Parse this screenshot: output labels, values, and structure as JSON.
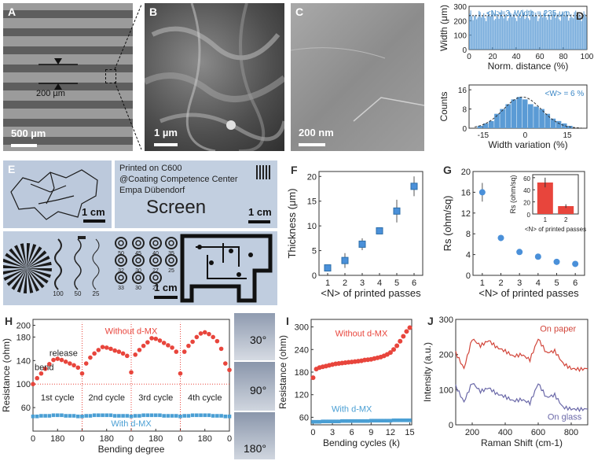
{
  "panels": {
    "A": {
      "letter": "A",
      "annotation": "200 µm",
      "scale": "500 µm"
    },
    "B": {
      "letter": "B",
      "scale": "1 µm"
    },
    "C": {
      "letter": "C",
      "scale": "200 nm"
    },
    "D": {
      "letter": "D"
    },
    "E": {
      "letter": "E",
      "map_scale": "1 cm",
      "screen_lines": [
        "Printed on C600",
        "@Coating Competence Center",
        "Empa Dübendorf"
      ],
      "screen_word": "Screen",
      "screen_scale": "1 cm",
      "pattern_scale": "1 cm",
      "ring_labels": [
        "50",
        "45",
        "40",
        "35",
        "32",
        "30",
        "27",
        "25",
        "33",
        "30",
        "27"
      ],
      "bar_labels": [
        "100",
        "50",
        "25"
      ]
    },
    "F": {
      "letter": "F"
    },
    "G": {
      "letter": "G"
    },
    "H": {
      "letter": "H",
      "angles": [
        "30°",
        "90°",
        "180°"
      ]
    },
    "I": {
      "letter": "I"
    },
    "J": {
      "letter": "J"
    }
  },
  "chart_data": [
    {
      "id": "D-top",
      "type": "bar",
      "ylabel": "Width (μm)",
      "xlabel": "Norm. distance (%)",
      "annotation": "<N>=3, Width = 235 μm",
      "xlim": [
        0,
        100
      ],
      "ylim": [
        0,
        300
      ],
      "xticks": [
        0,
        20,
        40,
        60,
        80,
        100
      ],
      "yticks": [
        0,
        100,
        200,
        300
      ],
      "mean": 235,
      "color": "#5b9bd5"
    },
    {
      "id": "D-bottom",
      "type": "bar",
      "ylabel": "Counts",
      "xlabel": "Width variation (%)",
      "annotation": "<W> = 6 %",
      "xlim": [
        -20,
        22
      ],
      "ylim": [
        0,
        18
      ],
      "xticks": [
        -15,
        0,
        15
      ],
      "yticks": [
        0,
        8,
        16
      ],
      "x": [
        -16,
        -14,
        -12,
        -10,
        -8,
        -6,
        -4,
        -2,
        0,
        2,
        4,
        6,
        8,
        10,
        12,
        14,
        16
      ],
      "values": [
        1,
        2,
        3,
        6,
        8,
        10,
        12,
        13,
        12,
        10,
        9,
        8,
        6,
        4,
        3,
        2,
        1
      ],
      "color": "#5b9bd5"
    },
    {
      "id": "F",
      "type": "scatter",
      "xlabel": "<N> of printed passes",
      "ylabel": "Thickness (μm)",
      "xlim": [
        0.5,
        6.5
      ],
      "ylim": [
        0,
        21
      ],
      "xticks": [
        1,
        2,
        3,
        4,
        5,
        6
      ],
      "yticks": [
        0,
        5,
        10,
        15,
        20
      ],
      "x": [
        1,
        2,
        3,
        4,
        5,
        6
      ],
      "values": [
        1.5,
        3,
        6.3,
        9,
        13,
        18
      ],
      "err": [
        0.3,
        1.5,
        1.2,
        0.6,
        2.3,
        2.0
      ],
      "color": "#4a90d9"
    },
    {
      "id": "G",
      "type": "scatter",
      "xlabel": "<N> of printed passes",
      "ylabel": "Rs (ohm/sq)",
      "xlim": [
        0.5,
        6.5
      ],
      "ylim": [
        0,
        20
      ],
      "xticks": [
        1,
        2,
        3,
        4,
        5,
        6
      ],
      "yticks": [
        0,
        4,
        8,
        12,
        16,
        20
      ],
      "x": [
        1,
        2,
        3,
        4,
        5,
        6
      ],
      "values": [
        16,
        7.2,
        4.5,
        3.6,
        2.6,
        2.2
      ],
      "err": [
        1.8,
        0.6,
        0.3,
        0.2,
        0.2,
        0.2
      ],
      "color": "#4a90d9",
      "inset": {
        "type": "bar",
        "categories": [
          "1",
          "2"
        ],
        "values": [
          52,
          13
        ],
        "err": [
          8,
          3
        ],
        "ylabel": "Rs (ohm/sq)",
        "xlabel": "<N> of printed passes",
        "ylim": [
          0,
          65
        ],
        "yticks": [
          0,
          20,
          40,
          60
        ],
        "color": "#e8453c"
      }
    },
    {
      "id": "H",
      "type": "line",
      "xlabel": "Bending degree",
      "ylabel": "Resistance (ohm)",
      "ylim": [
        20,
        210
      ],
      "yticks": [
        40,
        60,
        80,
        100,
        120,
        140,
        160,
        180,
        200
      ],
      "tick_labels": [
        "0",
        "180",
        "0",
        "180",
        "0",
        "180",
        "0",
        "180",
        "0"
      ],
      "series": [
        {
          "name": "Without d-MX",
          "color": "#e8453c",
          "values": [
            100,
            110,
            118,
            126,
            134,
            141,
            143,
            141,
            138,
            135,
            132,
            128,
            118,
            135,
            145,
            152,
            158,
            163,
            162,
            160,
            157,
            155,
            152,
            148,
            120,
            150,
            158,
            165,
            171,
            178,
            177,
            174,
            170,
            166,
            162,
            155,
            118,
            155,
            165,
            172,
            180,
            186,
            188,
            185,
            180,
            173,
            160,
            135,
            124
          ]
        },
        {
          "name": "With d-MX",
          "color": "#4a9fd4",
          "values": [
            45,
            45,
            46,
            46,
            46,
            47,
            47,
            47,
            46,
            46,
            46,
            45,
            45,
            46,
            46,
            47,
            47,
            47,
            47,
            47,
            46,
            46,
            46,
            46,
            45,
            46,
            46,
            47,
            47,
            47,
            47,
            47,
            46,
            46,
            46,
            46,
            45,
            46,
            46,
            47,
            47,
            47,
            47,
            47,
            46,
            46,
            46,
            45,
            45
          ]
        }
      ],
      "annotations": [
        "bend",
        "release",
        "1st cycle",
        "2nd cycle",
        "3rd cycle",
        "4th cycle"
      ]
    },
    {
      "id": "I",
      "type": "scatter",
      "xlabel": "Bending cycles (k)",
      "ylabel": "Resistance (ohm)",
      "xlim": [
        -0.3,
        15.3
      ],
      "ylim": [
        40,
        320
      ],
      "xticks": [
        0,
        3,
        6,
        9,
        12,
        15
      ],
      "yticks": [
        60,
        120,
        180,
        240,
        300
      ],
      "series": [
        {
          "name": "Without d-MX",
          "color": "#e8453c",
          "x": [
            0,
            0.5,
            1,
            1.5,
            2,
            2.5,
            3,
            3.5,
            4,
            4.5,
            5,
            5.5,
            6,
            6.5,
            7,
            7.5,
            8,
            8.5,
            9,
            9.5,
            10,
            10.5,
            11,
            11.5,
            12,
            12.5,
            13,
            13.5,
            14,
            14.5,
            15
          ],
          "values": [
            165,
            188,
            192,
            194,
            196,
            198,
            200,
            202,
            203,
            204,
            205,
            206,
            207,
            208,
            209,
            210,
            212,
            213,
            214,
            216,
            218,
            220,
            223,
            227,
            232,
            240,
            250,
            262,
            275,
            288,
            298
          ]
        },
        {
          "name": "With d-MX",
          "color": "#4a9fd4",
          "x": [
            0,
            0.5,
            1,
            1.5,
            2,
            2.5,
            3,
            3.5,
            4,
            4.5,
            5,
            5.5,
            6,
            6.5,
            7,
            7.5,
            8,
            8.5,
            9,
            9.5,
            10,
            10.5,
            11,
            11.5,
            12,
            12.5,
            13,
            13.5,
            14,
            14.5,
            15
          ],
          "values": [
            48,
            48,
            48,
            49,
            49,
            49,
            49,
            49,
            49,
            50,
            50,
            50,
            50,
            50,
            50,
            50,
            50,
            50,
            51,
            51,
            51,
            51,
            51,
            51,
            51,
            52,
            52,
            52,
            52,
            52,
            52
          ]
        }
      ]
    },
    {
      "id": "J",
      "type": "line",
      "xlabel": "Raman Shift (cm-1)",
      "ylabel": "Intensity (a.u.)",
      "xlim": [
        100,
        900
      ],
      "ylim": [
        0,
        300
      ],
      "xticks": [
        200,
        400,
        600,
        800
      ],
      "yticks": [
        0,
        100,
        200,
        300
      ],
      "series": [
        {
          "name": "On paper",
          "color": "#d2453a",
          "x": [
            100,
            150,
            200,
            250,
            300,
            350,
            400,
            450,
            500,
            550,
            600,
            650,
            700,
            750,
            800,
            850,
            900
          ],
          "values": [
            205,
            160,
            245,
            225,
            240,
            220,
            210,
            195,
            200,
            185,
            245,
            205,
            210,
            175,
            160,
            158,
            160
          ]
        },
        {
          "name": "On glass",
          "color": "#6a68a8",
          "x": [
            100,
            150,
            200,
            250,
            300,
            350,
            400,
            450,
            500,
            550,
            600,
            650,
            700,
            750,
            800,
            850,
            900
          ],
          "values": [
            110,
            65,
            120,
            95,
            105,
            88,
            80,
            68,
            72,
            62,
            118,
            78,
            85,
            50,
            45,
            44,
            45
          ]
        }
      ]
    }
  ]
}
